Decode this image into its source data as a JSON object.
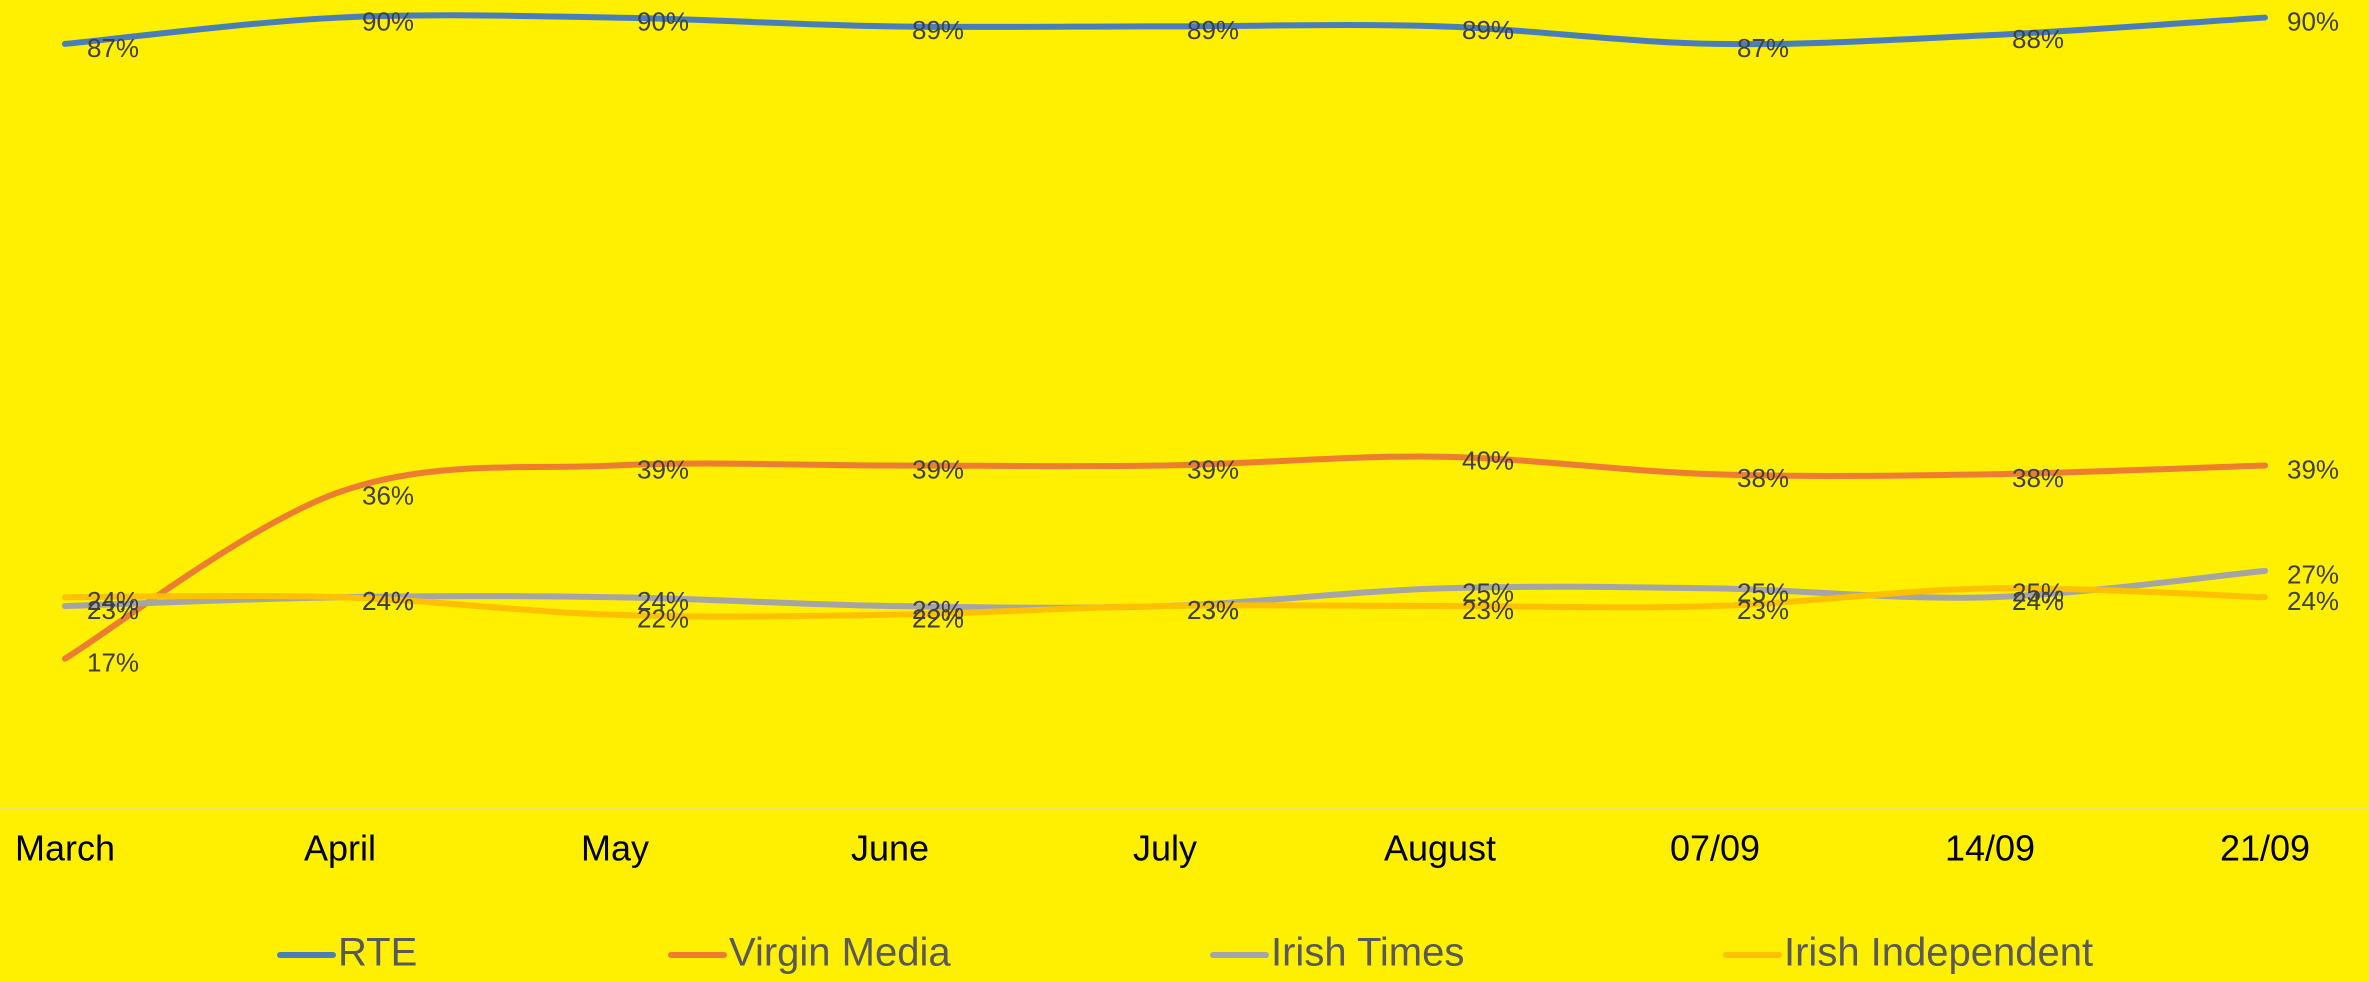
{
  "chart_data": {
    "type": "line",
    "categories": [
      "March",
      "April",
      "May",
      "June",
      "July",
      "August",
      "07/09",
      "14/09",
      "21/09"
    ],
    "series": [
      {
        "name": "RTE",
        "color": "#4a7ebb",
        "values": [
          87,
          90,
          90,
          89,
          89,
          89,
          87,
          88,
          90
        ]
      },
      {
        "name": "Virgin Media",
        "color": "#ed7d31",
        "values": [
          17,
          36,
          39,
          39,
          39,
          40,
          38,
          38,
          39
        ]
      },
      {
        "name": "Irish Times",
        "color": "#a5a5a5",
        "values": [
          23,
          24,
          24,
          23,
          23,
          25,
          25,
          24,
          27
        ]
      },
      {
        "name": "Irish Independent",
        "color": "#ffc000",
        "values": [
          24,
          24,
          22,
          22,
          23,
          23,
          23,
          25,
          24
        ]
      }
    ],
    "value_labels": [
      [
        "87%",
        "90%",
        "90%",
        "89%",
        "89%",
        "89%",
        "87%",
        "88%",
        "90%"
      ],
      [
        "17%",
        "36%",
        "39%",
        "39%",
        "39%",
        "40%",
        "38%",
        "38%",
        "39%"
      ],
      [
        "23%",
        "24%",
        "24%",
        "23%",
        "23%",
        "25%",
        "25%",
        "24%",
        "27%"
      ],
      [
        "24%",
        "24%",
        "22%",
        "22%",
        "23%",
        "23%",
        "23%",
        "25%",
        "24%"
      ]
    ],
    "ylim": [
      0,
      92
    ],
    "grid": false,
    "legend": "bottom"
  }
}
